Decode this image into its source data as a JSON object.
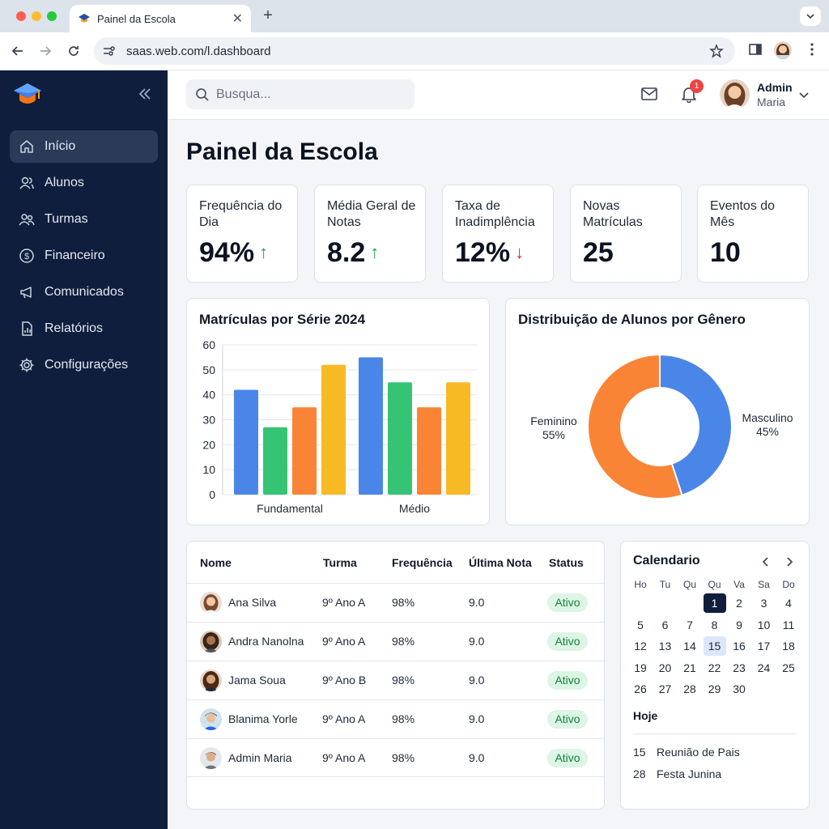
{
  "browser": {
    "tab_title": "Painel da Escola",
    "url": "saas.web.com/l.dashboard",
    "colors": {
      "close": "#ff5f57",
      "minimize": "#febc2e",
      "maximize": "#28c840"
    }
  },
  "sidebar": {
    "items": [
      {
        "label": "Início",
        "icon": "home-icon",
        "active": true
      },
      {
        "label": "Alunos",
        "icon": "users-icon"
      },
      {
        "label": "Turmas",
        "icon": "group-icon"
      },
      {
        "label": "Financeiro",
        "icon": "dollar-icon"
      },
      {
        "label": "Comunicados",
        "icon": "megaphone-icon"
      },
      {
        "label": "Relatórios",
        "icon": "report-icon"
      },
      {
        "label": "Configurações",
        "icon": "gear-icon"
      }
    ]
  },
  "header": {
    "search_placeholder": "Busqua...",
    "notifications_count": "1",
    "user_name": "Admin",
    "user_role": "Maria"
  },
  "page": {
    "title": "Painel da Escola"
  },
  "stats": [
    {
      "label": "Frequência do Dia",
      "value": "94%",
      "trend": "↑",
      "trend_color": "#16a34a"
    },
    {
      "label": "Média Geral de Notas",
      "value": "8.2",
      "trend": "↑",
      "trend_color": "#16a34a"
    },
    {
      "label": "Taxa de Inadimplência",
      "value": "12%",
      "trend": "↓",
      "trend_color": "#dc2626"
    },
    {
      "label": "Novas Matrículas",
      "value": "25",
      "trend": ""
    },
    {
      "label": "Eventos do Mês",
      "value": "10",
      "trend": ""
    }
  ],
  "chart_data": [
    {
      "type": "bar",
      "title": "Matrículas por Série 2024",
      "categories": [
        "Fundamental",
        "Médio"
      ],
      "series": [
        {
          "color": "#4a86e8",
          "values": [
            42,
            55
          ]
        },
        {
          "color": "#34c474",
          "values": [
            27,
            45
          ]
        },
        {
          "color": "#fa8435",
          "values": [
            35,
            35
          ]
        },
        {
          "color": "#f7b924",
          "values": [
            52,
            45
          ]
        }
      ],
      "ylim": [
        0,
        60
      ],
      "yticks": [
        "0",
        "10",
        "20",
        "30",
        "40",
        "50",
        "60"
      ],
      "grid": true
    },
    {
      "type": "pie",
      "title": "Distribuição de Alunos por Gênero",
      "slices": [
        {
          "label": "Masculino",
          "pct_label": "45%",
          "value": 45,
          "color": "#4a86e8"
        },
        {
          "label": "Feminino",
          "pct_label": "55%",
          "value": 55,
          "color": "#fa8435"
        }
      ]
    }
  ],
  "table": {
    "headers": [
      "Nome",
      "Turma",
      "Frequência",
      "Última Nota",
      "Status"
    ],
    "rows": [
      {
        "name": "Ana Silva",
        "turma": "9º Ano A",
        "freq": "98%",
        "nota": "9.0",
        "status": "Ativo"
      },
      {
        "name": "Andra Nanolna",
        "turma": "9º Ano A",
        "freq": "98%",
        "nota": "9.0",
        "status": "Ativo"
      },
      {
        "name": "Jama Soua",
        "turma": "9º Ano B",
        "freq": "98%",
        "nota": "9.0",
        "status": "Ativo"
      },
      {
        "name": "Blanima Yorle",
        "turma": "9º Ano A",
        "freq": "98%",
        "nota": "9.0",
        "status": "Ativo"
      },
      {
        "name": "Admin Maria",
        "turma": "9º Ano A",
        "freq": "98%",
        "nota": "9.0",
        "status": "Ativo"
      }
    ]
  },
  "calendar": {
    "title": "Calendario",
    "weekdays": [
      "Ho",
      "Tu",
      "Qu",
      "Qu",
      "Va",
      "Sa",
      "Do"
    ],
    "selected_day": 1,
    "today_day": 15,
    "today_label": "Hoje",
    "events": [
      {
        "day": "15",
        "name": "Reunião de Pais"
      },
      {
        "day": "28",
        "name": "Festa Junina"
      }
    ]
  }
}
